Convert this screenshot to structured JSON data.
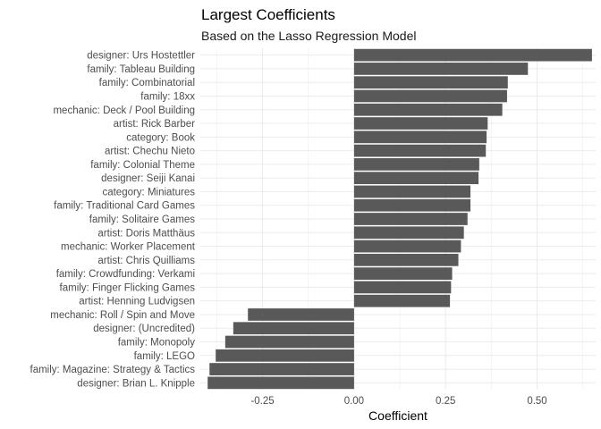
{
  "chart_data": {
    "type": "bar",
    "orientation": "horizontal",
    "title": "Largest Coefficients",
    "subtitle": "Based on the Lasso Regression Model",
    "xlabel": "Coefficient",
    "ylabel": "",
    "xlim": [
      -0.42,
      0.66
    ],
    "xticks": [
      -0.25,
      0,
      0.25,
      0.5
    ],
    "xtick_labels": [
      "-0.25",
      "0.00",
      "0.25",
      "0.50"
    ],
    "grid": true,
    "bar_color": "#595959",
    "categories": [
      "designer: Urs Hostettler",
      "family: Tableau Building",
      "family: Combinatorial",
      "family: 18xx",
      "mechanic: Deck / Pool Building",
      "artist: Rick Barber",
      "category: Book",
      "artist: Chechu Nieto",
      "family: Colonial Theme",
      "designer: Seiji Kanai",
      "category: Miniatures",
      "family: Traditional Card Games",
      "family: Solitaire Games",
      "artist: Doris Matthäus",
      "mechanic: Worker Placement",
      "artist: Chris Quilliams",
      "family: Crowdfunding: Verkami",
      "family: Finger Flicking Games",
      "artist: Henning Ludvigsen",
      "mechanic: Roll / Spin and Move",
      "designer: (Uncredited)",
      "family: Monopoly",
      "family: LEGO",
      "family: Magazine: Strategy & Tactics",
      "designer: Brian L. Knipple"
    ],
    "values": [
      0.65,
      0.475,
      0.42,
      0.418,
      0.405,
      0.365,
      0.362,
      0.36,
      0.342,
      0.34,
      0.318,
      0.318,
      0.31,
      0.3,
      0.292,
      0.285,
      0.268,
      0.265,
      0.262,
      -0.29,
      -0.33,
      -0.352,
      -0.378,
      -0.395,
      -0.4
    ]
  }
}
